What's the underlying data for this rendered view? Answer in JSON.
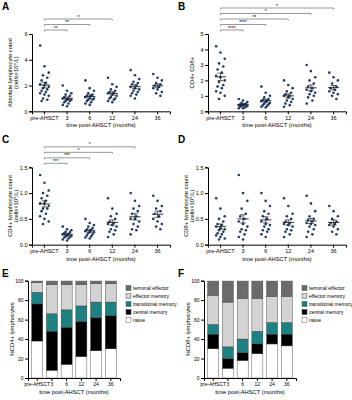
{
  "chart_data": [
    {
      "type": "scatter",
      "title": "A",
      "ylabel": "Absolute lymphocyte count\n(cells×10⁹/L)",
      "xlabel": "time post-AHSCT (months)",
      "categories": [
        "pre-AHSCT",
        "3",
        "6",
        "12",
        "24",
        "36"
      ],
      "color": "#1f3a68",
      "ylim": [
        0,
        6
      ],
      "yticks": [
        0,
        2,
        4,
        6
      ],
      "points": [
        [
          5.1,
          3.5,
          3.0,
          2.8,
          2.6,
          2.4,
          2.2,
          2.1,
          2.0,
          1.9,
          1.8,
          1.7,
          1.6,
          1.5,
          1.4,
          1.3,
          1.2,
          1.0,
          0.9,
          0.8
        ],
        [
          2.0,
          1.6,
          1.4,
          1.3,
          1.2,
          1.1,
          1.0,
          1.0,
          0.9,
          0.9,
          0.8,
          0.8,
          0.7,
          0.6,
          0.5,
          0.4
        ],
        [
          2.4,
          1.8,
          1.6,
          1.4,
          1.3,
          1.2,
          1.2,
          1.1,
          1.0,
          1.0,
          0.9,
          0.9,
          0.8,
          0.7,
          0.6,
          0.5
        ],
        [
          2.6,
          2.1,
          1.9,
          1.7,
          1.6,
          1.5,
          1.4,
          1.4,
          1.3,
          1.2,
          1.1,
          1.0,
          1.0,
          0.9,
          0.8,
          0.7
        ],
        [
          3.2,
          2.8,
          2.5,
          2.3,
          2.2,
          2.1,
          2.0,
          1.9,
          1.8,
          1.7,
          1.6,
          1.5,
          1.4,
          1.3,
          1.2,
          1.0
        ],
        [
          2.9,
          2.6,
          2.4,
          2.2,
          2.1,
          2.0,
          1.9,
          1.8,
          1.7,
          1.5,
          1.4,
          1.2
        ]
      ],
      "means": [
        2.04,
        1.01,
        1.15,
        1.39,
        1.91,
        1.98
      ],
      "errors": [
        0.22,
        0.11,
        0.12,
        0.13,
        0.15,
        0.14
      ],
      "significance": [
        {
          "from": "pre-AHSCT",
          "to": "3",
          "label": "**"
        },
        {
          "from": "pre-AHSCT",
          "to": "6",
          "label": "**"
        },
        {
          "from": "pre-AHSCT",
          "to": "12",
          "label": "*"
        }
      ]
    },
    {
      "type": "scatter",
      "title": "B",
      "ylabel": "CD4+ CD8+",
      "xlabel": "time post-AHSCT (months)",
      "categories": [
        "pre-AHSCT",
        "3",
        "6",
        "12",
        "24",
        "36"
      ],
      "color": "#1f3a68",
      "ylim": [
        0,
        5
      ],
      "yticks": [
        0,
        1,
        2,
        3,
        4,
        5
      ],
      "points": [
        [
          4.2,
          3.8,
          3.4,
          3.1,
          2.9,
          2.7,
          2.5,
          2.3,
          2.2,
          2.0,
          1.9,
          1.7,
          1.6,
          1.5,
          1.3,
          1.2,
          1.0,
          0.8
        ],
        [
          0.8,
          0.7,
          0.6,
          0.55,
          0.5,
          0.45,
          0.45,
          0.4,
          0.4,
          0.35,
          0.35,
          0.3,
          0.3,
          0.25,
          0.2,
          0.2
        ],
        [
          1.6,
          1.2,
          1.0,
          0.9,
          0.8,
          0.75,
          0.7,
          0.65,
          0.6,
          0.55,
          0.5,
          0.45,
          0.4,
          0.35,
          0.3,
          0.25
        ],
        [
          2.0,
          1.7,
          1.5,
          1.3,
          1.2,
          1.1,
          1.0,
          1.0,
          0.9,
          0.8,
          0.7,
          0.6,
          0.5,
          0.4,
          0.3
        ],
        [
          3.0,
          2.6,
          2.2,
          2.0,
          1.8,
          1.6,
          1.5,
          1.4,
          1.3,
          1.2,
          1.1,
          1.0,
          0.9,
          0.7,
          0.5
        ],
        [
          2.5,
          2.2,
          2.0,
          1.8,
          1.6,
          1.5,
          1.4,
          1.3,
          1.2,
          1.1,
          1.0,
          0.8
        ]
      ],
      "means": [
        2.23,
        0.43,
        0.69,
        1.0,
        1.52,
        1.53
      ],
      "errors": [
        0.24,
        0.05,
        0.09,
        0.13,
        0.18,
        0.14
      ],
      "significance": [
        {
          "from": "pre-AHSCT",
          "to": "3",
          "label": "****"
        },
        {
          "from": "pre-AHSCT",
          "to": "6",
          "label": "****"
        },
        {
          "from": "pre-AHSCT",
          "to": "12",
          "label": "**"
        },
        {
          "from": "pre-AHSCT",
          "to": "24",
          "label": "*"
        },
        {
          "from": "pre-AHSCT",
          "to": "36",
          "label": "*"
        }
      ]
    },
    {
      "type": "scatter",
      "title": "C",
      "ylabel": "CD4+ lymphocyte count\n(cells×10⁹/L)",
      "xlabel": "time post-AHSCT (months)",
      "categories": [
        "pre-AHSCT",
        "3",
        "6",
        "12",
        "24",
        "36"
      ],
      "color": "#1f3a68",
      "ylim": [
        0,
        1.5
      ],
      "yticks": [
        {
          "value": 0,
          "label": "0.0"
        },
        {
          "value": 0.5,
          "label": "0.5"
        },
        {
          "value": 1,
          "label": "1.0"
        },
        {
          "value": 1.5,
          "label": "1.5"
        }
      ],
      "points": [
        [
          1.35,
          1.2,
          1.05,
          1.0,
          0.95,
          0.9,
          0.85,
          0.8,
          0.8,
          0.75,
          0.7,
          0.7,
          0.65,
          0.6,
          0.55,
          0.5,
          0.45,
          0.4
        ],
        [
          0.35,
          0.3,
          0.28,
          0.25,
          0.24,
          0.22,
          0.2,
          0.2,
          0.18,
          0.17,
          0.16,
          0.15,
          0.14,
          0.12,
          0.1,
          0.08
        ],
        [
          0.5,
          0.42,
          0.38,
          0.35,
          0.32,
          0.3,
          0.28,
          0.26,
          0.25,
          0.24,
          0.22,
          0.2,
          0.18,
          0.16,
          0.14,
          0.12
        ],
        [
          0.9,
          0.7,
          0.6,
          0.55,
          0.5,
          0.45,
          0.42,
          0.4,
          0.38,
          0.35,
          0.3,
          0.28,
          0.25,
          0.2,
          0.15
        ],
        [
          1.0,
          0.85,
          0.75,
          0.7,
          0.65,
          0.6,
          0.55,
          0.5,
          0.5,
          0.45,
          0.4,
          0.35,
          0.3,
          0.28,
          0.2
        ],
        [
          0.95,
          0.85,
          0.75,
          0.7,
          0.65,
          0.6,
          0.55,
          0.5,
          0.45,
          0.4,
          0.35,
          0.3
        ]
      ],
      "means": [
        0.79,
        0.2,
        0.27,
        0.43,
        0.54,
        0.59
      ],
      "errors": [
        0.06,
        0.02,
        0.03,
        0.05,
        0.06,
        0.06
      ],
      "significance": [
        {
          "from": "pre-AHSCT",
          "to": "3",
          "label": "***"
        },
        {
          "from": "pre-AHSCT",
          "to": "6",
          "label": "***"
        },
        {
          "from": "pre-AHSCT",
          "to": "12",
          "label": "*"
        },
        {
          "from": "pre-AHSCT",
          "to": "24",
          "label": "*"
        }
      ]
    },
    {
      "type": "scatter",
      "title": "D",
      "ylabel": "CD8+ lymphocyte count\n(cells×10⁹/L)",
      "xlabel": "time post-AHSCT (months)",
      "categories": [
        "pre-AHSCT",
        "3",
        "6",
        "12",
        "24",
        "36"
      ],
      "color": "#1f3a68",
      "ylim": [
        0,
        1.5
      ],
      "yticks": [
        {
          "value": 0,
          "label": "0.0"
        },
        {
          "value": 0.5,
          "label": "0.5"
        },
        {
          "value": 1,
          "label": "1.0"
        },
        {
          "value": 1.5,
          "label": "1.5"
        }
      ],
      "points": [
        [
          0.9,
          0.7,
          0.55,
          0.5,
          0.45,
          0.4,
          0.38,
          0.35,
          0.32,
          0.3,
          0.28,
          0.25,
          0.22,
          0.2,
          0.18,
          0.15,
          0.12,
          0.1
        ],
        [
          1.35,
          1.0,
          0.85,
          0.7,
          0.6,
          0.55,
          0.5,
          0.45,
          0.4,
          0.35,
          0.3,
          0.28,
          0.25,
          0.2,
          0.15,
          0.1
        ],
        [
          1.0,
          0.85,
          0.75,
          0.65,
          0.6,
          0.55,
          0.5,
          0.45,
          0.4,
          0.38,
          0.35,
          0.3,
          0.28,
          0.25,
          0.2,
          0.15
        ],
        [
          0.9,
          0.75,
          0.6,
          0.55,
          0.5,
          0.45,
          0.42,
          0.4,
          0.38,
          0.35,
          0.3,
          0.28,
          0.25,
          0.2,
          0.15
        ],
        [
          0.95,
          0.8,
          0.65,
          0.55,
          0.5,
          0.48,
          0.45,
          0.42,
          0.4,
          0.38,
          0.35,
          0.3,
          0.25,
          0.2,
          0.15
        ],
        [
          0.75,
          0.65,
          0.55,
          0.5,
          0.45,
          0.42,
          0.4,
          0.38,
          0.35,
          0.3,
          0.25,
          0.2
        ]
      ],
      "means": [
        0.35,
        0.5,
        0.48,
        0.43,
        0.46,
        0.43
      ],
      "errors": [
        0.05,
        0.08,
        0.06,
        0.05,
        0.05,
        0.05
      ],
      "significance": []
    },
    {
      "type": "bar",
      "title": "E",
      "stacked": true,
      "legend": "right",
      "ylabel": "%CD4+ lymphocytes",
      "xlabel": "time post-AHSCT (months)",
      "categories": [
        "pre-AHSCT",
        "3",
        "6",
        "12",
        "24",
        "36"
      ],
      "ylim": [
        0,
        100
      ],
      "yticks": [
        0,
        20,
        40,
        60,
        80,
        100
      ],
      "series": [
        {
          "name": "naive",
          "color": "#ffffff",
          "values": [
            38,
            8,
            14,
            22,
            28,
            30
          ]
        },
        {
          "name": "central memory",
          "color": "#000000",
          "values": [
            38,
            40,
            38,
            36,
            34,
            34
          ]
        },
        {
          "name": "transitional memory",
          "color": "#1e8080",
          "values": [
            12,
            18,
            18,
            16,
            16,
            14
          ]
        },
        {
          "name": "effector memory",
          "color": "#d3d3d3",
          "values": [
            10,
            30,
            26,
            22,
            19,
            19
          ]
        },
        {
          "name": "terminal effector",
          "color": "#6b6b6b",
          "values": [
            2,
            4,
            4,
            4,
            3,
            3
          ]
        }
      ]
    },
    {
      "type": "bar",
      "title": "F",
      "stacked": true,
      "legend": "right",
      "ylabel": "%CD8+ lymphocytes",
      "xlabel": "time post-AHSCT (months)",
      "categories": [
        "pre-AHSCT",
        "3",
        "6",
        "12",
        "24",
        "36"
      ],
      "ylim": [
        0,
        100
      ],
      "yticks": [
        0,
        20,
        40,
        60,
        80,
        100
      ],
      "series": [
        {
          "name": "naive",
          "color": "#ffffff",
          "values": [
            30,
            10,
            18,
            25,
            35,
            33
          ]
        },
        {
          "name": "central memory",
          "color": "#000000",
          "values": [
            15,
            10,
            8,
            10,
            10,
            12
          ]
        },
        {
          "name": "transitional memory",
          "color": "#1e8080",
          "values": [
            10,
            12,
            14,
            13,
            12,
            12
          ]
        },
        {
          "name": "effector memory",
          "color": "#d3d3d3",
          "values": [
            30,
            46,
            42,
            34,
            27,
            27
          ]
        },
        {
          "name": "terminal effector",
          "color": "#6b6b6b",
          "values": [
            15,
            22,
            18,
            18,
            16,
            16
          ]
        }
      ]
    }
  ]
}
